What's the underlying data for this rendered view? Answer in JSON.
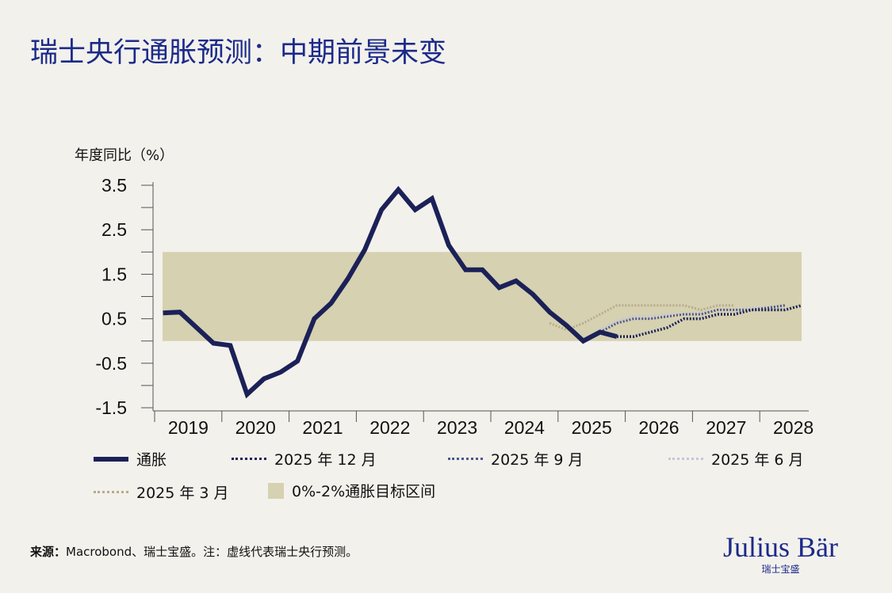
{
  "title": "瑞士央行通胀预测：中期前景未变",
  "colors": {
    "navy": "#1b2157",
    "band": "#d6d1b1",
    "mar": "#b8ab8a",
    "jun": "#c4c6d6",
    "sep": "#4f568c",
    "dec": "#1b2157"
  },
  "chart_data": {
    "type": "line",
    "ylabel": "年度同比（%）",
    "ylim": [
      -1.5,
      3.5
    ],
    "yticks": [
      "3.5",
      "2.5",
      "1.5",
      "0.5",
      "-0.5",
      "-1.5"
    ],
    "ytick_values": [
      3.5,
      2.5,
      1.5,
      0.5,
      -0.5,
      -1.5
    ],
    "xticks": [
      "2019",
      "2020",
      "2021",
      "2022",
      "2023",
      "2024",
      "2025",
      "2026",
      "2027",
      "2028"
    ],
    "band": {
      "name": "0%-2%通胀目标区间",
      "range": [
        0,
        2
      ]
    },
    "series": [
      {
        "name": "通胀",
        "style": "solid",
        "start": 2019.125,
        "values": [
          0.63,
          0.65,
          0.3,
          -0.05,
          -0.1,
          -1.2,
          -0.85,
          -0.7,
          -0.45,
          0.5,
          0.85,
          1.4,
          2.05,
          2.95,
          3.4,
          2.95,
          3.2,
          2.15,
          1.6,
          1.6,
          1.2,
          1.35,
          1.05,
          0.65,
          0.35,
          0.0,
          0.2,
          0.1
        ]
      },
      {
        "name": "2025 年 12 月",
        "style": "dec",
        "start": 2025.875,
        "values": [
          0.1,
          0.1,
          0.2,
          0.3,
          0.5,
          0.5,
          0.6,
          0.6,
          0.7,
          0.7,
          0.7,
          0.8
        ]
      },
      {
        "name": "2025 年 9 月",
        "style": "sep",
        "start": 2025.625,
        "values": [
          0.2,
          0.4,
          0.5,
          0.5,
          0.55,
          0.6,
          0.6,
          0.7,
          0.7,
          0.7,
          0.75,
          0.8
        ]
      },
      {
        "name": "2025 年 6 月",
        "style": "jun",
        "start": 2025.625,
        "values": [
          0.25,
          0.45,
          0.55,
          0.55,
          0.6,
          0.6,
          0.65,
          0.7,
          0.7,
          0.75,
          0.75,
          0.8
        ]
      },
      {
        "name": "2025 年 3 月",
        "style": "mar",
        "start": 2024.875,
        "values": [
          0.4,
          0.25,
          0.4,
          0.6,
          0.8,
          0.8,
          0.8,
          0.8,
          0.8,
          0.7,
          0.8,
          0.8
        ]
      }
    ]
  },
  "source_label": "来源：",
  "source_text": "Macrobond、瑞士宝盛。注：虚线代表瑞士央行预测。",
  "logo": {
    "name": "Julius Bär",
    "sub": "瑞士宝盛"
  }
}
